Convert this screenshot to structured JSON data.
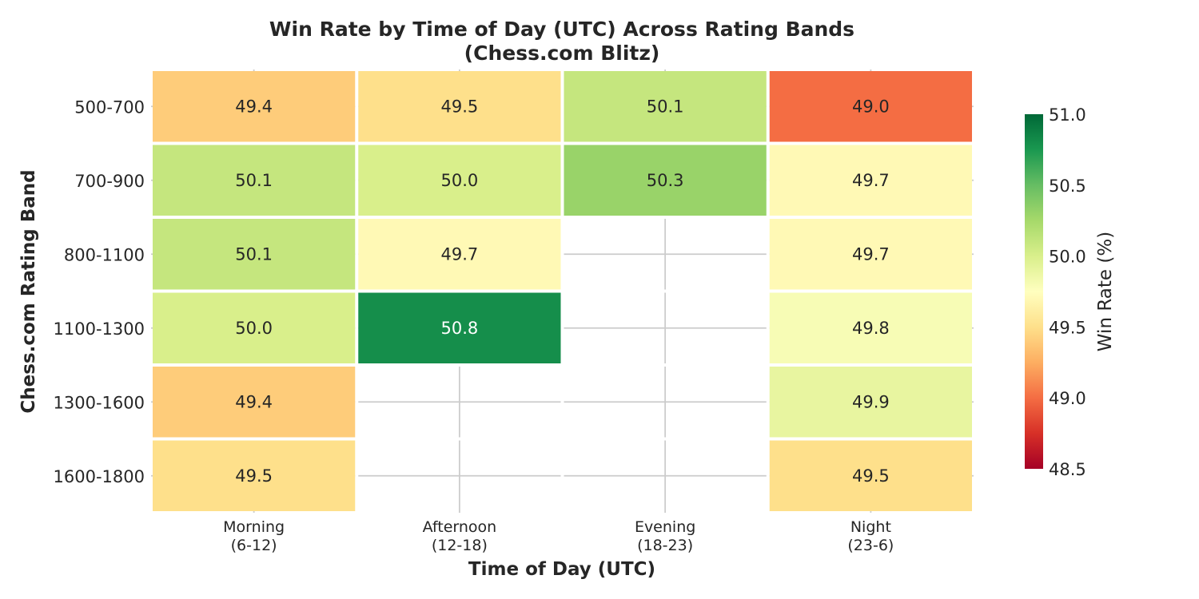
{
  "chart_data": {
    "type": "heatmap",
    "title_lines": [
      "Win Rate by Time of Day (UTC) Across Rating Bands",
      "(Chess.com Blitz)"
    ],
    "xlabel": "Time of Day (UTC)",
    "ylabel": "Chess.com Rating Band",
    "x_categories": [
      {
        "line1": "Morning",
        "line2": "(6-12)"
      },
      {
        "line1": "Afternoon",
        "line2": "(12-18)"
      },
      {
        "line1": "Evening",
        "line2": "(18-23)"
      },
      {
        "line1": "Night",
        "line2": "(23-6)"
      }
    ],
    "y_categories": [
      "500-700",
      "700-900",
      "800-1100",
      "1100-1300",
      "1300-1600",
      "1600-1800"
    ],
    "values": [
      [
        49.4,
        49.5,
        50.1,
        49.0
      ],
      [
        50.1,
        50.0,
        50.3,
        49.7
      ],
      [
        50.1,
        49.7,
        null,
        49.7
      ],
      [
        50.0,
        50.8,
        null,
        49.8
      ],
      [
        49.4,
        null,
        null,
        49.9
      ],
      [
        49.5,
        null,
        null,
        49.5
      ]
    ],
    "colorbar": {
      "label": "Win Rate (%)",
      "range": [
        48.5,
        51.0
      ],
      "ticks": [
        48.5,
        49.0,
        49.5,
        50.0,
        50.5,
        51.0
      ],
      "colormap": "RdYlGn",
      "colors": [
        "#a50026",
        "#d73027",
        "#f46d43",
        "#fdae61",
        "#fee08b",
        "#ffffbf",
        "#d9ef8b",
        "#a6d96a",
        "#66bd63",
        "#1a9850",
        "#006837"
      ]
    },
    "grid": true
  }
}
